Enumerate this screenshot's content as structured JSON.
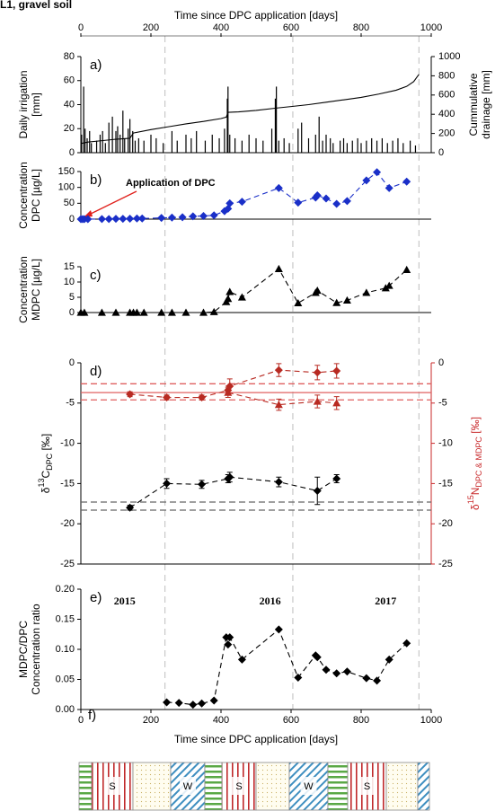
{
  "title": "L1, gravel soil",
  "chart_data": [
    {
      "type": "bar",
      "label": "a)",
      "xaxis": "top",
      "xlabel": "Time since DPC application [days]",
      "xlim": [
        0,
        1000
      ],
      "xticks": [
        0,
        200,
        400,
        600,
        800,
        1000
      ],
      "ylim": [
        0,
        80
      ],
      "yticks": [
        0,
        20,
        40,
        60,
        80
      ],
      "ylabel": [
        "Daily irrigation",
        "[mm]"
      ],
      "y2lim": [
        0,
        1000
      ],
      "y2ticks": [
        0,
        200,
        400,
        600,
        800,
        1000
      ],
      "y2label": [
        "Cummulative",
        "drainage [mm]"
      ],
      "vlines": [
        240,
        605,
        965
      ],
      "series": [
        {
          "type": "bar",
          "color": "#000000",
          "x": [
            2,
            8,
            12,
            18,
            25,
            30,
            45,
            55,
            62,
            70,
            80,
            90,
            100,
            105,
            112,
            120,
            125,
            135,
            140,
            148,
            155,
            165,
            180,
            200,
            215,
            235,
            260,
            275,
            300,
            315,
            330,
            355,
            375,
            395,
            410,
            418,
            420,
            425,
            440,
            460,
            480,
            500,
            520,
            545,
            555,
            558,
            565,
            580,
            595,
            620,
            630,
            650,
            670,
            680,
            690,
            700,
            712,
            720,
            740,
            750,
            760,
            775,
            790,
            800,
            815,
            830,
            845,
            860,
            875,
            890,
            905,
            920,
            940,
            955
          ],
          "values": [
            15,
            55,
            20,
            12,
            18,
            8,
            10,
            15,
            18,
            8,
            25,
            30,
            18,
            22,
            15,
            35,
            12,
            20,
            28,
            18,
            10,
            12,
            10,
            15,
            12,
            8,
            18,
            10,
            15,
            12,
            18,
            10,
            15,
            12,
            20,
            45,
            55,
            15,
            12,
            10,
            15,
            12,
            10,
            20,
            45,
            55,
            10,
            12,
            8,
            20,
            25,
            12,
            15,
            30,
            10,
            15,
            12,
            8,
            10,
            12,
            8,
            10,
            12,
            8,
            10,
            12,
            10,
            12,
            8,
            10,
            12,
            8,
            10,
            6
          ]
        },
        {
          "type": "line",
          "axis": "y2",
          "color": "#000000",
          "x": [
            0,
            20,
            60,
            100,
            140,
            150,
            200,
            250,
            300,
            350,
            400,
            415,
            420,
            450,
            500,
            560,
            600,
            650,
            700,
            750,
            800,
            850,
            900,
            930,
            950,
            960,
            965
          ],
          "values": [
            95,
            110,
            125,
            140,
            150,
            205,
            240,
            270,
            300,
            325,
            355,
            370,
            420,
            425,
            440,
            465,
            480,
            500,
            525,
            550,
            575,
            610,
            650,
            690,
            740,
            790,
            815
          ]
        }
      ]
    },
    {
      "type": "line",
      "label": "b)",
      "xlim": [
        0,
        1000
      ],
      "ylim": [
        0,
        150
      ],
      "yticks": [
        0,
        50,
        100,
        150
      ],
      "ylabel": [
        "Concentration",
        "DPC [µg/L]"
      ],
      "annotation": "Application of DPC",
      "annotation_color": "#e0201b",
      "series": [
        {
          "color": "#1a2fc8",
          "marker": "diamond",
          "dashed": true,
          "x": [
            0,
            5,
            10,
            20,
            60,
            80,
            100,
            120,
            140,
            160,
            175,
            230,
            260,
            290,
            320,
            350,
            380,
            410,
            420,
            425,
            460,
            565,
            620,
            670,
            675,
            700,
            730,
            760,
            815,
            845,
            880,
            930
          ],
          "values": [
            0,
            0,
            0,
            0,
            0.5,
            0.5,
            1,
            1,
            1.5,
            2,
            2,
            4,
            5,
            6,
            9,
            10,
            12,
            25,
            33,
            50,
            55,
            98,
            52,
            68,
            75,
            65,
            48,
            57,
            122,
            148,
            98,
            118
          ]
        }
      ]
    },
    {
      "type": "line",
      "label": "c)",
      "xlim": [
        0,
        1000
      ],
      "ylim": [
        0,
        15
      ],
      "yticks": [
        0,
        5,
        10,
        15
      ],
      "ylabel": [
        "Concentration",
        "MDPC [µg/L]"
      ],
      "series": [
        {
          "color": "#000000",
          "marker": "triangle",
          "dashed": true,
          "x": [
            0,
            10,
            60,
            100,
            140,
            150,
            160,
            180,
            230,
            260,
            300,
            350,
            380,
            415,
            420,
            425,
            460,
            565,
            620,
            670,
            675,
            730,
            760,
            815,
            870,
            880,
            930
          ],
          "values": [
            0,
            0,
            0,
            0,
            0,
            0,
            0,
            0,
            0,
            0,
            0,
            0,
            0.2,
            3.5,
            4.5,
            6.8,
            5,
            14.3,
            3.1,
            6.5,
            7.2,
            3.2,
            4,
            6.5,
            8,
            8.8,
            14
          ]
        }
      ]
    },
    {
      "type": "line",
      "label": "d)",
      "xlim": [
        0,
        1000
      ],
      "ylim": [
        -25,
        0
      ],
      "yticks": [
        -25,
        -20,
        -15,
        -10,
        -5,
        0
      ],
      "ylabel_parts": [
        {
          "text": "δ"
        },
        {
          "text": "13",
          "shift": "super"
        },
        {
          "text": "C"
        },
        {
          "text": "DPC",
          "shift": "sub"
        },
        {
          "text": " [‰]"
        }
      ],
      "y2lim": [
        -25,
        0
      ],
      "y2ticks": [
        -25,
        -20,
        -15,
        -10,
        -5,
        0
      ],
      "y2color": "#c8282a",
      "y2label_parts": [
        {
          "text": "δ"
        },
        {
          "text": "15",
          "shift": "super"
        },
        {
          "text": "N"
        },
        {
          "text": "DPC & MDPC",
          "shift": "sub"
        },
        {
          "text": " [‰]"
        }
      ],
      "hlines": [
        {
          "value": -17.3,
          "color": "#666666",
          "dashed": true
        },
        {
          "value": -18.3,
          "color": "#666666",
          "dashed": true
        },
        {
          "value": -3.7,
          "axis": "y2",
          "color": "#e06060",
          "dashed": false
        },
        {
          "value": -2.6,
          "axis": "y2",
          "color": "#e06060",
          "dashed": true
        },
        {
          "value": -4.6,
          "axis": "y2",
          "color": "#e06060",
          "dashed": true
        }
      ],
      "series": [
        {
          "color": "#000000",
          "marker": "diamond",
          "dashed": true,
          "x": [
            140,
            245,
            345,
            420,
            425,
            565,
            675,
            730
          ],
          "values": [
            -18,
            -15,
            -15.1,
            -14.4,
            -14.2,
            -14.8,
            -15.9,
            -14.4
          ],
          "errors": [
            0.3,
            0.6,
            0.5,
            0.5,
            0.6,
            0.6,
            1.7,
            0.5
          ]
        },
        {
          "color": "#b82a22",
          "marker": "diamond",
          "dashed": true,
          "axis": "y2",
          "x": [
            140,
            245,
            345,
            420,
            425,
            565,
            675,
            730
          ],
          "values": [
            -3.9,
            -4.3,
            -4.3,
            -3.4,
            -2.9,
            -0.9,
            -1.2,
            -1
          ],
          "errors": [
            0.3,
            0.3,
            0.3,
            0.5,
            0.9,
            0.8,
            0.9,
            0.9
          ]
        },
        {
          "color": "#b82a22",
          "marker": "triangle",
          "dashed": true,
          "axis": "y2",
          "x": [
            420,
            565,
            675,
            730
          ],
          "values": [
            -3.7,
            -5.2,
            -4.8,
            -5
          ],
          "errors": [
            0.6,
            0.7,
            0.8,
            0.8
          ]
        }
      ]
    },
    {
      "type": "line",
      "label": "e)",
      "xaxis": "bottom",
      "xlabel": "Time since DPC application [days]",
      "xlim": [
        0,
        1000
      ],
      "xticks": [
        0,
        200,
        400,
        600,
        800,
        1000
      ],
      "ylim": [
        0,
        0.2
      ],
      "yticks": [
        {
          "value": 0,
          "label": "0.00"
        },
        0.05,
        {
          "value": 0.1,
          "label": "0.10"
        },
        0.15,
        {
          "value": 0.2,
          "label": "0.20"
        }
      ],
      "ylabel": [
        "MDPC/DPC",
        "Concentration ratio"
      ],
      "years": [
        "2015",
        "2016",
        "2017"
      ],
      "series": [
        {
          "color": "#000000",
          "marker": "diamond",
          "dashed": true,
          "x": [
            245,
            280,
            320,
            345,
            380,
            415,
            420,
            425,
            460,
            565,
            620,
            670,
            675,
            700,
            730,
            760,
            815,
            845,
            880,
            930
          ],
          "values": [
            0.012,
            0.011,
            0.008,
            0.01,
            0.015,
            0.12,
            0.108,
            0.12,
            0.083,
            0.133,
            0.053,
            0.09,
            0.087,
            0.066,
            0.06,
            0.063,
            0.052,
            0.048,
            0.083,
            0.11
          ]
        }
      ]
    },
    {
      "type": "seasons",
      "label": "f)",
      "season_labels": [
        "S",
        "W",
        "S",
        "W",
        "S"
      ]
    }
  ]
}
